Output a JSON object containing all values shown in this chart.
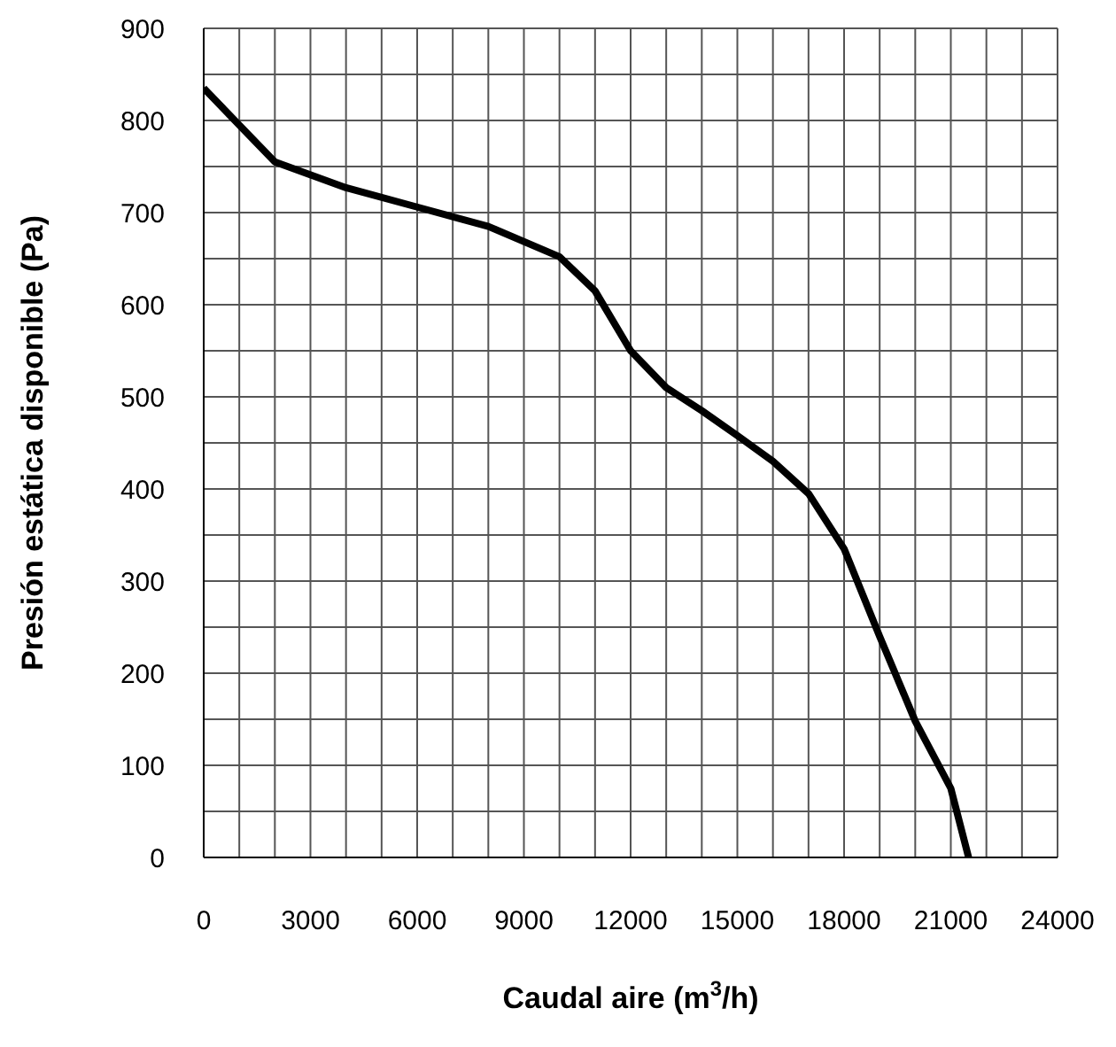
{
  "chart_data": {
    "type": "line",
    "xlabel": "Caudal aire (m$^{3}$/h)",
    "ylabel": "Presión estática disponible (Pa)",
    "x": [
      0,
      2000,
      4000,
      6000,
      8000,
      10000,
      11000,
      12000,
      13000,
      14000,
      15000,
      16000,
      17000,
      18000,
      19000,
      20000,
      21000,
      21500
    ],
    "series": [
      {
        "color": "#000000",
        "values": [
          835,
          755,
          727,
          706,
          685,
          652,
          615,
          550,
          510,
          485,
          458,
          430,
          395,
          335,
          240,
          148,
          75,
          0
        ]
      }
    ],
    "xlim": [
      0,
      24000
    ],
    "xticks": [
      0,
      {
        "value": 1000,
        "label": null
      },
      {
        "value": 2000,
        "label": null
      },
      3000,
      {
        "value": 4000,
        "label": null
      },
      {
        "value": 5000,
        "label": null
      },
      6000,
      {
        "value": 7000,
        "label": null
      },
      {
        "value": 8000,
        "label": null
      },
      9000,
      {
        "value": 10000,
        "label": null
      },
      {
        "value": 11000,
        "label": null
      },
      12000,
      {
        "value": 13000,
        "label": null
      },
      {
        "value": 14000,
        "label": null
      },
      15000,
      {
        "value": 16000,
        "label": null
      },
      {
        "value": 17000,
        "label": null
      },
      18000,
      {
        "value": 19000,
        "label": null
      },
      {
        "value": 20000,
        "label": null
      },
      21000,
      {
        "value": 22000,
        "label": null
      },
      {
        "value": 23000,
        "label": null
      },
      24000
    ],
    "ylim": [
      0,
      900
    ],
    "yticks": [
      0,
      {
        "value": 50,
        "label": null
      },
      100,
      {
        "value": 150,
        "label": null
      },
      200,
      {
        "value": 250,
        "label": null
      },
      300,
      {
        "value": 350,
        "label": null
      },
      400,
      {
        "value": 450,
        "label": null
      },
      500,
      {
        "value": 550,
        "label": null
      },
      600,
      {
        "value": 650,
        "label": null
      },
      700,
      {
        "value": 750,
        "label": null
      },
      800,
      {
        "value": 850,
        "label": null
      },
      900
    ],
    "grid": true,
    "legend": false,
    "marker": "none",
    "line_style": "solid"
  }
}
